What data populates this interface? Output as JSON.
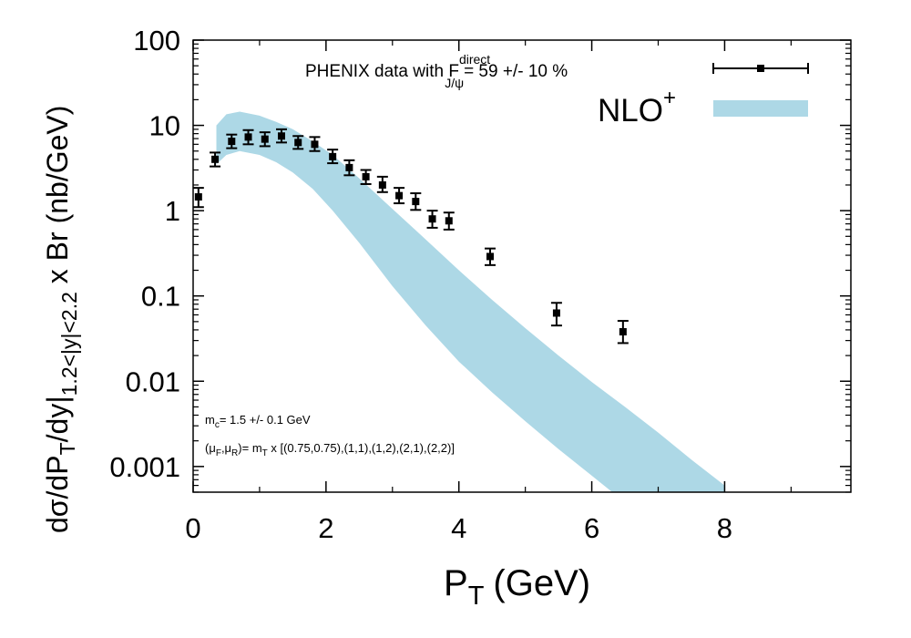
{
  "chart_data": {
    "type": "scatter",
    "title": "",
    "xlabel": "P",
    "xlabel_sub": "T",
    "xlabel_unit": "(GeV)",
    "ylabel_parts": {
      "a": "dσ/dP",
      "b": "T",
      "c": "/dy|",
      "d": "1.2<|y|<2.2",
      "e": " x Br (nb/GeV)"
    },
    "xlim": [
      0,
      9.9
    ],
    "ylim": [
      0.0005,
      100
    ],
    "yscale": "log",
    "xticks": [
      0,
      2,
      4,
      6,
      8
    ],
    "xtick_labels": [
      "0",
      "2",
      "4",
      "6",
      "8"
    ],
    "yticks": [
      0.001,
      0.01,
      0.1,
      1,
      10,
      100
    ],
    "ytick_labels": [
      "0.001",
      "0.01",
      "0.1",
      "1",
      "10",
      "100"
    ],
    "legend": {
      "position": "top-right",
      "data_label": {
        "prefix": "PHENIX data with F",
        "sup": "direct",
        "sub": "J/ψ",
        "suffix": "= 59 +/- 10 %"
      },
      "band_label": {
        "main": "NLO",
        "sup": "+"
      }
    },
    "annotations": {
      "mass": {
        "m": "m",
        "sub": "c",
        "rest": "= 1.5 +/- 0.1 GeV"
      },
      "scales": {
        "open": "(μ",
        "sub1": "F",
        "mid": ",μ",
        "sub2": "R",
        "eq": ")= m",
        "sub3": "T",
        "rest": " x [(0.75,0.75),(1,1),(1,2),(2,1),(2,2)]"
      }
    },
    "series": [
      {
        "name": "PHENIX data",
        "x": [
          0.08,
          0.33,
          0.58,
          0.83,
          1.08,
          1.33,
          1.58,
          1.83,
          2.1,
          2.35,
          2.6,
          2.85,
          3.1,
          3.35,
          3.6,
          3.85,
          4.47,
          5.47,
          6.47
        ],
        "y": [
          1.45,
          4.0,
          6.5,
          7.3,
          6.9,
          7.5,
          6.3,
          6.0,
          4.3,
          3.2,
          2.5,
          2.0,
          1.5,
          1.28,
          0.8,
          0.76,
          0.29,
          0.063,
          0.038
        ],
        "ylow": [
          1.1,
          3.3,
          5.4,
          6.0,
          5.7,
          6.3,
          5.3,
          5.0,
          3.6,
          2.6,
          2.05,
          1.65,
          1.22,
          1.02,
          0.63,
          0.6,
          0.23,
          0.045,
          0.028
        ],
        "yhigh": [
          1.85,
          4.8,
          7.8,
          8.8,
          8.3,
          9.0,
          7.5,
          7.3,
          5.2,
          3.9,
          3.0,
          2.5,
          1.85,
          1.6,
          1.0,
          0.95,
          0.36,
          0.083,
          0.051
        ],
        "color": "#000000"
      },
      {
        "name": "NLO+ band",
        "color": "#add8e6",
        "x": [
          0.35,
          0.5,
          0.7,
          1.0,
          1.25,
          1.5,
          1.8,
          2.1,
          2.5,
          3.0,
          3.5,
          4.0,
          4.5,
          5.0,
          5.5,
          6.0,
          6.5,
          7.0,
          7.5,
          8.0
        ],
        "upper": [
          10,
          13.5,
          14.5,
          13.0,
          11.0,
          9.0,
          6.5,
          4.5,
          2.4,
          1.05,
          0.46,
          0.2,
          0.09,
          0.042,
          0.02,
          0.0098,
          0.005,
          0.0025,
          0.0012,
          0.0006
        ],
        "lower": [
          3.5,
          4.5,
          5.0,
          4.5,
          3.7,
          2.8,
          1.8,
          1.0,
          0.42,
          0.13,
          0.045,
          0.017,
          0.0074,
          0.0034,
          0.0016,
          0.00078,
          0.00038,
          0.00018,
          9e-05,
          4e-05
        ]
      }
    ]
  }
}
